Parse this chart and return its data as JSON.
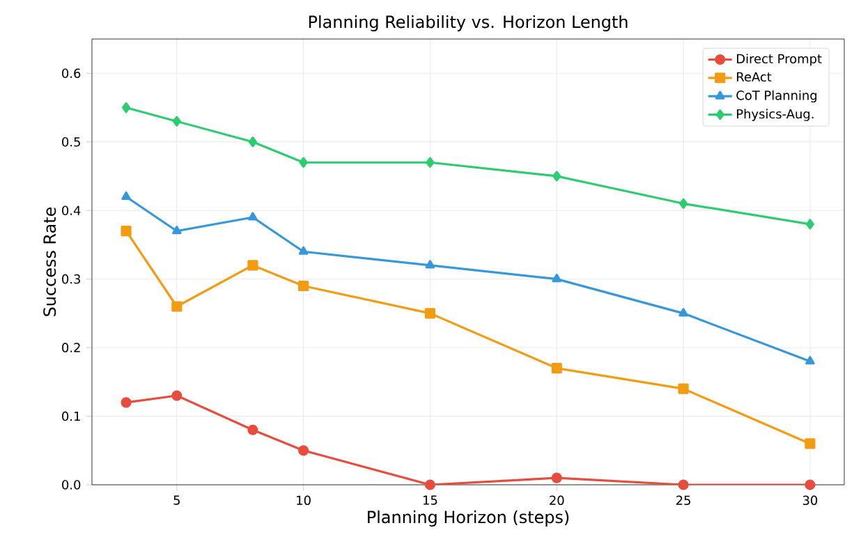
{
  "chart_data": {
    "type": "line",
    "title": "Planning Reliability vs. Horizon Length",
    "xlabel": "Planning Horizon (steps)",
    "ylabel": "Success Rate",
    "x": [
      3,
      5,
      8,
      10,
      15,
      20,
      25,
      30
    ],
    "xlim": [
      1.65,
      31.35
    ],
    "xticks": [
      5,
      10,
      15,
      20,
      25,
      30
    ],
    "ylim": [
      0,
      0.65
    ],
    "yticks": [
      {
        "value": 0,
        "label": "0.0"
      },
      0.1,
      0.2,
      0.3,
      0.4,
      0.5,
      0.6
    ],
    "grid": true,
    "legend": "top right",
    "line_style": "solid",
    "series": [
      {
        "name": "Direct Prompt",
        "color": "#e74c3c",
        "marker": "circle",
        "values": [
          0.12,
          0.13,
          0.08,
          0.05,
          0.0,
          0.01,
          0.0,
          0.0
        ]
      },
      {
        "name": "ReAct",
        "color": "#f39c12",
        "marker": "square",
        "values": [
          0.37,
          0.26,
          0.32,
          0.29,
          0.25,
          0.17,
          0.14,
          0.06
        ]
      },
      {
        "name": "CoT Planning",
        "color": "#3498db",
        "marker": "triangle",
        "values": [
          0.42,
          0.37,
          0.39,
          0.34,
          0.32,
          0.3,
          0.25,
          0.18
        ]
      },
      {
        "name": "Physics-Aug.",
        "color": "#2ecc71",
        "marker": "diamond",
        "values": [
          0.55,
          0.53,
          0.5,
          0.47,
          0.47,
          0.45,
          0.41,
          0.38
        ]
      }
    ]
  }
}
